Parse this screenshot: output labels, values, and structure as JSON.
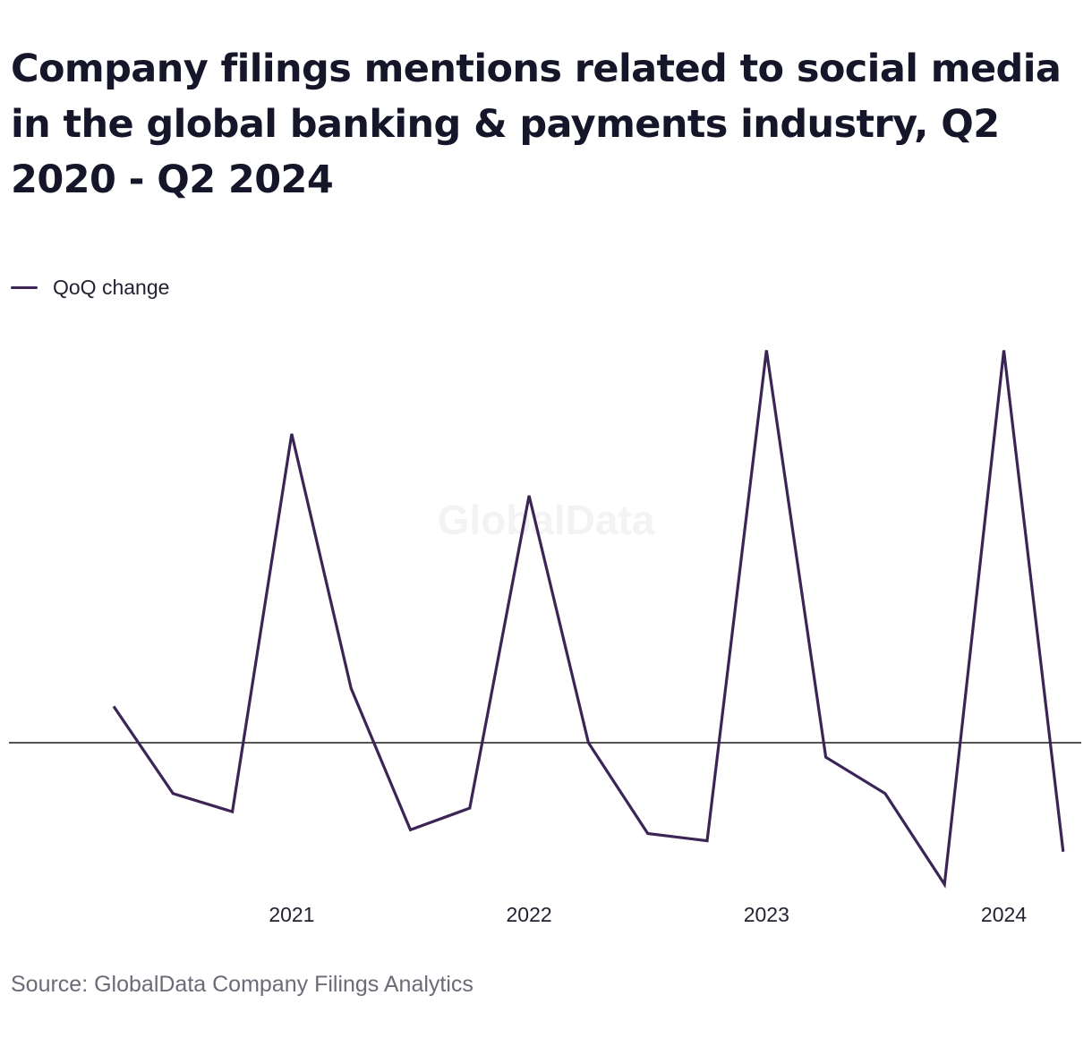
{
  "header": {
    "title": "Company filings mentions related to social media in the global banking & payments industry, Q2 2020 - Q2 2024"
  },
  "legend": {
    "label": "QoQ change",
    "color": "#3a2554"
  },
  "watermark": {
    "text": "GlobalData"
  },
  "footer": {
    "source": "Source: GlobalData Company Filings Analytics"
  },
  "chart_data": {
    "type": "line",
    "title": "Company filings mentions related to social media in the global banking & payments industry, Q2 2020 - Q2 2024",
    "xlabel": "",
    "ylabel": "",
    "x_tick_labels": [
      "2021",
      "2022",
      "2023",
      "2024"
    ],
    "x_tick_positions": [
      "Q1 2021",
      "Q1 2022",
      "Q1 2023",
      "Q1 2024"
    ],
    "grid": false,
    "zero_line": true,
    "legend_position": "top-left",
    "ylim": [
      -40,
      110
    ],
    "series": [
      {
        "name": "QoQ change",
        "color": "#3a2554",
        "x": [
          "Q2 2020",
          "Q3 2020",
          "Q4 2020",
          "Q1 2021",
          "Q2 2021",
          "Q3 2021",
          "Q4 2021",
          "Q1 2022",
          "Q2 2022",
          "Q3 2022",
          "Q4 2022",
          "Q1 2023",
          "Q2 2023",
          "Q3 2023",
          "Q4 2023",
          "Q1 2024",
          "Q2 2024"
        ],
        "values": [
          10,
          -14,
          -19,
          85,
          15,
          -24,
          -18,
          68,
          0,
          -25,
          -27,
          108,
          -4,
          -14,
          -39,
          108,
          -30
        ]
      }
    ]
  }
}
